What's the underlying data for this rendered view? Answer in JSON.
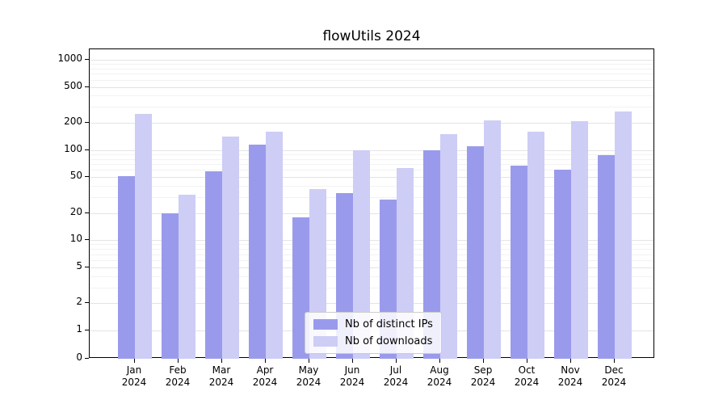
{
  "chart_data": {
    "type": "bar",
    "title": "flowUtils 2024",
    "categories": [
      "Jan",
      "Feb",
      "Mar",
      "Apr",
      "May",
      "Jun",
      "Jul",
      "Aug",
      "Sep",
      "Oct",
      "Nov",
      "Dec"
    ],
    "year": "2024",
    "series": [
      {
        "name": "Nb of distinct IPs",
        "color": "#9a9aec",
        "values": [
          51,
          20,
          58,
          115,
          18,
          33,
          28,
          100,
          110,
          67,
          60,
          88
        ]
      },
      {
        "name": "Nb of downloads",
        "color": "#cdcdf6",
        "values": [
          250,
          32,
          140,
          160,
          37,
          100,
          63,
          150,
          215,
          160,
          210,
          265
        ]
      }
    ],
    "yscale": "symlog",
    "y_ticks": [
      0,
      1,
      2,
      5,
      10,
      20,
      50,
      100,
      200,
      500,
      1000
    ],
    "ylim": [
      0,
      1300
    ],
    "xlabel": "",
    "ylabel": "",
    "grid": true,
    "legend_position": "lower center"
  },
  "colors": {
    "major_grid": "#e4e4e4",
    "minor_grid": "#f2f2f2",
    "axis": "#000000",
    "background": "#ffffff"
  }
}
